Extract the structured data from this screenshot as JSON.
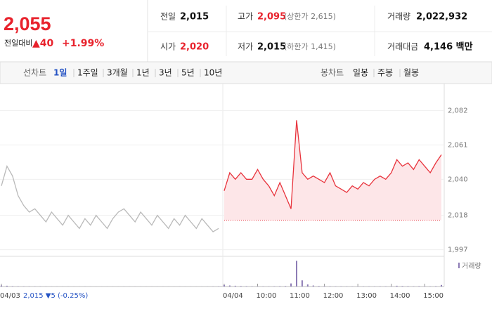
{
  "header": {
    "price": "2,055",
    "change_label": "전일대비",
    "change": "▲40",
    "change_rate": "+1.99%"
  },
  "stats": [
    {
      "label": "전일",
      "value": "2,015"
    },
    {
      "label": "고가",
      "value": "2,095",
      "note": "(상한가 2,615)"
    },
    {
      "label": "거래량",
      "value": "2,022,932"
    },
    {
      "label": "시가",
      "value": "2,020"
    },
    {
      "label": "저가",
      "value": "2,015",
      "note": "(하한가 1,415)"
    },
    {
      "label": "거래대금",
      "value": "4,146 백만"
    }
  ],
  "tabs": {
    "line_label": "선차트",
    "line_items": [
      "1일",
      "1주일",
      "3개월",
      "1년",
      "3년",
      "5년",
      "10년"
    ],
    "candle_label": "봉차트",
    "candle_items": [
      "일봉",
      "주봉",
      "월봉"
    ]
  },
  "chart_data": {
    "type": "line",
    "categories": [
      "04/03",
      null,
      null,
      null,
      null,
      null,
      null,
      null,
      null,
      null,
      null,
      null,
      null,
      null,
      null,
      null,
      null,
      null,
      null,
      null,
      null,
      null,
      null,
      null,
      null,
      null,
      null,
      null,
      null,
      null,
      null,
      null,
      null,
      null,
      null,
      null,
      null,
      null,
      null,
      null,
      "04/04",
      null,
      null,
      null,
      null,
      null,
      "10:00",
      null,
      null,
      null,
      null,
      null,
      "11:00",
      null,
      null,
      null,
      null,
      null,
      "12:00",
      null,
      null,
      null,
      null,
      null,
      "13:00",
      null,
      null,
      null,
      null,
      null,
      "14:00",
      null,
      null,
      null,
      null,
      null,
      "15:00",
      null,
      null,
      null
    ],
    "series": [
      {
        "color": "#b9b9b9",
        "values": [
          2036,
          2048,
          2042,
          2030,
          2024,
          2020,
          2022,
          2018,
          2014,
          2020,
          2016,
          2012,
          2018,
          2014,
          2010,
          2016,
          2012,
          2018,
          2014,
          2010,
          2016,
          2020,
          2022,
          2018,
          2014,
          2020,
          2016,
          2012,
          2018,
          2014,
          2010,
          2016,
          2012,
          2018,
          2014,
          2010,
          2016,
          2012,
          2008,
          2010,
          null,
          null,
          null,
          null,
          null,
          null,
          null,
          null,
          null,
          null,
          null,
          null,
          null,
          null,
          null,
          null,
          null,
          null,
          null,
          null,
          null,
          null,
          null,
          null,
          null,
          null,
          null,
          null,
          null,
          null,
          null,
          null,
          null,
          null,
          null,
          null,
          null,
          null,
          null,
          null
        ]
      },
      {
        "color": "#e8333c",
        "fill": "#fde6e8",
        "values": [
          null,
          null,
          null,
          null,
          null,
          null,
          null,
          null,
          null,
          null,
          null,
          null,
          null,
          null,
          null,
          null,
          null,
          null,
          null,
          null,
          null,
          null,
          null,
          null,
          null,
          null,
          null,
          null,
          null,
          null,
          null,
          null,
          null,
          null,
          null,
          null,
          null,
          null,
          null,
          null,
          2033,
          2044,
          2040,
          2044,
          2040,
          2040,
          2046,
          2040,
          2036,
          2030,
          2038,
          2030,
          2022,
          2076,
          2044,
          2040,
          2042,
          2040,
          2038,
          2044,
          2036,
          2034,
          2032,
          2036,
          2034,
          2038,
          2036,
          2040,
          2042,
          2040,
          2044,
          2052,
          2048,
          2050,
          2046,
          2052,
          2048,
          2044,
          2050,
          2055
        ]
      }
    ],
    "reference_line": 2015,
    "ylim": [
      1993,
      2098
    ],
    "yticks": [
      {
        "value": 2082,
        "label": "2,082"
      },
      {
        "value": 2061,
        "label": "2,061"
      },
      {
        "value": 2040,
        "label": "2,040"
      },
      {
        "value": 2018,
        "label": "2,018"
      },
      {
        "value": 1997,
        "label": "1,997"
      }
    ],
    "grid": true,
    "annotation": "2,015 ▼5 (-0.25%)",
    "volume": {
      "name": "거래량",
      "color": "#8c7bb5",
      "ylim": [
        0,
        520000
      ],
      "values": [
        20000,
        15000,
        8000,
        6000,
        5000,
        4000,
        3000,
        3000,
        2000,
        2000,
        2000,
        1500,
        1500,
        1000,
        1000,
        1500,
        1000,
        1000,
        1000,
        1000,
        1000,
        1000,
        1500,
        1000,
        1000,
        1000,
        1000,
        1000,
        1000,
        1000,
        1000,
        1000,
        1500,
        1000,
        1000,
        1000,
        1500,
        2000,
        3000,
        5000,
        30000,
        20000,
        15000,
        10000,
        8000,
        6000,
        5000,
        5000,
        4000,
        6000,
        8000,
        10000,
        60000,
        500000,
        120000,
        40000,
        20000,
        10000,
        8000,
        6000,
        5000,
        5000,
        4000,
        4000,
        4000,
        5000,
        4000,
        4000,
        5000,
        5000,
        6000,
        15000,
        10000,
        8000,
        6000,
        8000,
        6000,
        5000,
        8000,
        30000
      ]
    }
  }
}
